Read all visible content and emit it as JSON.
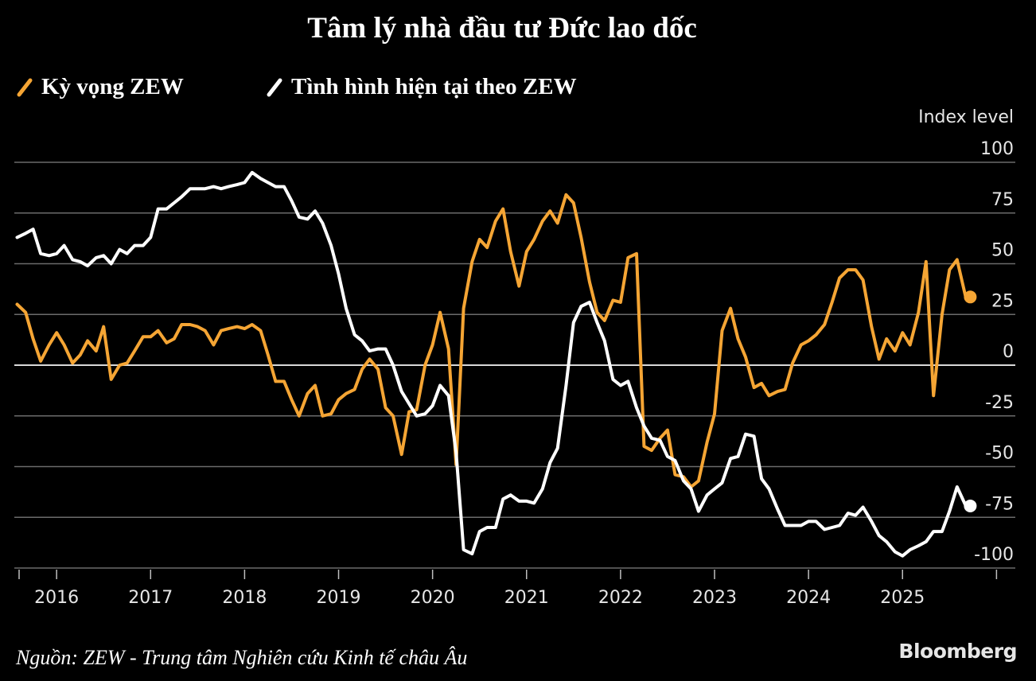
{
  "title": "Tâm lý nhà đầu tư Đức lao dốc",
  "legend": [
    {
      "label": "Kỳ vọng ZEW",
      "color": "#f5a534"
    },
    {
      "label": "Tình hình hiện tại theo ZEW",
      "color": "#ffffff"
    }
  ],
  "source": "Nguồn: ZEW - Trung tâm Nghiên cứu Kinh tế châu Âu",
  "brand": "Bloomberg",
  "chart_data": {
    "type": "line",
    "title": "Tâm lý nhà đầu tư Đức lao dốc",
    "ylabel": "Index level",
    "xlabel": "",
    "ylim": [
      -100,
      100
    ],
    "xlim": [
      2015.55,
      2026.2
    ],
    "y_ticks": [
      {
        "value": 100,
        "label": "100"
      },
      {
        "value": 75,
        "label": "75"
      },
      {
        "value": 50,
        "label": "50"
      },
      {
        "value": 25,
        "label": "25"
      },
      {
        "value": 0,
        "label": "0"
      },
      {
        "value": -25,
        "label": "-25"
      },
      {
        "value": -50,
        "label": "-50"
      },
      {
        "value": -75,
        "label": "-75"
      },
      {
        "value": -100,
        "label": "-100"
      }
    ],
    "x_ticks": [
      {
        "value": 2016,
        "label": "2016"
      },
      {
        "value": 2017,
        "label": "2017"
      },
      {
        "value": 2018,
        "label": "2018"
      },
      {
        "value": 2019,
        "label": "2019"
      },
      {
        "value": 2020,
        "label": "2020"
      },
      {
        "value": 2021,
        "label": "2021"
      },
      {
        "value": 2022,
        "label": "2022"
      },
      {
        "value": 2023,
        "label": "2023"
      },
      {
        "value": 2024,
        "label": "2024"
      },
      {
        "value": 2025,
        "label": "2025"
      }
    ],
    "series": [
      {
        "name": "Kỳ vọng ZEW",
        "color": "#f5a534",
        "end_marker": true,
        "points": [
          [
            2015.58,
            30
          ],
          [
            2015.67,
            26
          ],
          [
            2015.75,
            13
          ],
          [
            2015.83,
            2
          ],
          [
            2015.92,
            10
          ],
          [
            2016.0,
            16
          ],
          [
            2016.08,
            10
          ],
          [
            2016.17,
            1
          ],
          [
            2016.25,
            5
          ],
          [
            2016.33,
            12
          ],
          [
            2016.42,
            7
          ],
          [
            2016.5,
            19
          ],
          [
            2016.58,
            -7
          ],
          [
            2016.67,
            0
          ],
          [
            2016.75,
            1
          ],
          [
            2016.83,
            7
          ],
          [
            2016.92,
            14
          ],
          [
            2017.0,
            14
          ],
          [
            2017.08,
            17
          ],
          [
            2017.17,
            11
          ],
          [
            2017.25,
            13
          ],
          [
            2017.33,
            20
          ],
          [
            2017.42,
            20
          ],
          [
            2017.5,
            19
          ],
          [
            2017.58,
            17
          ],
          [
            2017.67,
            10
          ],
          [
            2017.75,
            17
          ],
          [
            2017.83,
            18
          ],
          [
            2017.92,
            19
          ],
          [
            2018.0,
            18
          ],
          [
            2018.08,
            20
          ],
          [
            2018.17,
            17
          ],
          [
            2018.25,
            5
          ],
          [
            2018.33,
            -8
          ],
          [
            2018.42,
            -8
          ],
          [
            2018.5,
            -17
          ],
          [
            2018.58,
            -25
          ],
          [
            2018.67,
            -14
          ],
          [
            2018.75,
            -10
          ],
          [
            2018.83,
            -25
          ],
          [
            2018.92,
            -24
          ],
          [
            2019.0,
            -17
          ],
          [
            2019.08,
            -14
          ],
          [
            2019.17,
            -12
          ],
          [
            2019.25,
            -2
          ],
          [
            2019.33,
            3
          ],
          [
            2019.42,
            -2
          ],
          [
            2019.5,
            -21
          ],
          [
            2019.58,
            -25
          ],
          [
            2019.67,
            -44
          ],
          [
            2019.75,
            -23
          ],
          [
            2019.83,
            -22
          ],
          [
            2019.92,
            0
          ],
          [
            2020.0,
            10
          ],
          [
            2020.08,
            26
          ],
          [
            2020.17,
            8
          ],
          [
            2020.25,
            -49
          ],
          [
            2020.33,
            28
          ],
          [
            2020.42,
            51
          ],
          [
            2020.5,
            62
          ],
          [
            2020.58,
            58
          ],
          [
            2020.67,
            71
          ],
          [
            2020.75,
            77
          ],
          [
            2020.83,
            56
          ],
          [
            2020.92,
            39
          ],
          [
            2021.0,
            56
          ],
          [
            2021.08,
            62
          ],
          [
            2021.17,
            71
          ],
          [
            2021.25,
            76
          ],
          [
            2021.33,
            70
          ],
          [
            2021.42,
            84
          ],
          [
            2021.5,
            80
          ],
          [
            2021.58,
            63
          ],
          [
            2021.67,
            41
          ],
          [
            2021.75,
            26
          ],
          [
            2021.83,
            22
          ],
          [
            2021.92,
            32
          ],
          [
            2022.0,
            31
          ],
          [
            2022.08,
            53
          ],
          [
            2022.17,
            55
          ],
          [
            2022.25,
            -40
          ],
          [
            2022.33,
            -42
          ],
          [
            2022.42,
            -36
          ],
          [
            2022.5,
            -32
          ],
          [
            2022.58,
            -54
          ],
          [
            2022.67,
            -55
          ],
          [
            2022.75,
            -60
          ],
          [
            2022.83,
            -57
          ],
          [
            2022.92,
            -38
          ],
          [
            2023.0,
            -24
          ],
          [
            2023.08,
            17
          ],
          [
            2023.17,
            28
          ],
          [
            2023.25,
            13
          ],
          [
            2023.33,
            4
          ],
          [
            2023.42,
            -11
          ],
          [
            2023.5,
            -9
          ],
          [
            2023.58,
            -15
          ],
          [
            2023.67,
            -13
          ],
          [
            2023.75,
            -12
          ],
          [
            2023.83,
            1
          ],
          [
            2023.92,
            10
          ],
          [
            2024.0,
            12
          ],
          [
            2024.08,
            15
          ],
          [
            2024.17,
            20
          ],
          [
            2024.25,
            31
          ],
          [
            2024.33,
            43
          ],
          [
            2024.42,
            47
          ],
          [
            2024.5,
            47
          ],
          [
            2024.58,
            42
          ],
          [
            2024.67,
            19
          ],
          [
            2024.75,
            3
          ],
          [
            2024.83,
            13
          ],
          [
            2024.92,
            7
          ],
          [
            2025.0,
            16
          ],
          [
            2025.08,
            10
          ],
          [
            2025.17,
            26
          ],
          [
            2025.25,
            51
          ],
          [
            2025.33,
            -15
          ],
          [
            2025.42,
            25
          ],
          [
            2025.5,
            47
          ],
          [
            2025.58,
            52
          ],
          [
            2025.67,
            34
          ]
        ]
      },
      {
        "name": "Tình hình hiện tại theo ZEW",
        "color": "#ffffff",
        "end_marker": true,
        "points": [
          [
            2015.58,
            63
          ],
          [
            2015.67,
            65
          ],
          [
            2015.75,
            67
          ],
          [
            2015.83,
            55
          ],
          [
            2015.92,
            54
          ],
          [
            2016.0,
            55
          ],
          [
            2016.08,
            59
          ],
          [
            2016.17,
            52
          ],
          [
            2016.25,
            51
          ],
          [
            2016.33,
            49
          ],
          [
            2016.42,
            53
          ],
          [
            2016.5,
            54
          ],
          [
            2016.58,
            50
          ],
          [
            2016.67,
            57
          ],
          [
            2016.75,
            55
          ],
          [
            2016.83,
            59
          ],
          [
            2016.92,
            59
          ],
          [
            2017.0,
            63
          ],
          [
            2017.08,
            77
          ],
          [
            2017.17,
            77
          ],
          [
            2017.25,
            80
          ],
          [
            2017.33,
            83
          ],
          [
            2017.42,
            87
          ],
          [
            2017.5,
            87
          ],
          [
            2017.58,
            87
          ],
          [
            2017.67,
            88
          ],
          [
            2017.75,
            87
          ],
          [
            2017.83,
            88
          ],
          [
            2017.92,
            89
          ],
          [
            2018.0,
            90
          ],
          [
            2018.08,
            95
          ],
          [
            2018.17,
            92
          ],
          [
            2018.25,
            90
          ],
          [
            2018.33,
            88
          ],
          [
            2018.42,
            88
          ],
          [
            2018.5,
            81
          ],
          [
            2018.58,
            73
          ],
          [
            2018.67,
            72
          ],
          [
            2018.75,
            76
          ],
          [
            2018.83,
            70
          ],
          [
            2018.92,
            59
          ],
          [
            2019.0,
            45
          ],
          [
            2019.08,
            28
          ],
          [
            2019.17,
            15
          ],
          [
            2019.25,
            12
          ],
          [
            2019.33,
            7
          ],
          [
            2019.42,
            8
          ],
          [
            2019.5,
            8
          ],
          [
            2019.58,
            0
          ],
          [
            2019.67,
            -13
          ],
          [
            2019.75,
            -19
          ],
          [
            2019.83,
            -25
          ],
          [
            2019.92,
            -24
          ],
          [
            2020.0,
            -20
          ],
          [
            2020.08,
            -10
          ],
          [
            2020.17,
            -15
          ],
          [
            2020.25,
            -43
          ],
          [
            2020.33,
            -91
          ],
          [
            2020.42,
            -93
          ],
          [
            2020.5,
            -82
          ],
          [
            2020.58,
            -80
          ],
          [
            2020.67,
            -80
          ],
          [
            2020.75,
            -66
          ],
          [
            2020.83,
            -64
          ],
          [
            2020.92,
            -67
          ],
          [
            2021.0,
            -67
          ],
          [
            2021.08,
            -68
          ],
          [
            2021.17,
            -61
          ],
          [
            2021.25,
            -48
          ],
          [
            2021.33,
            -41
          ],
          [
            2021.42,
            -10
          ],
          [
            2021.5,
            21
          ],
          [
            2021.58,
            29
          ],
          [
            2021.67,
            31
          ],
          [
            2021.75,
            21
          ],
          [
            2021.83,
            12
          ],
          [
            2021.92,
            -7
          ],
          [
            2022.0,
            -10
          ],
          [
            2022.08,
            -8
          ],
          [
            2022.17,
            -21
          ],
          [
            2022.25,
            -30
          ],
          [
            2022.33,
            -36
          ],
          [
            2022.42,
            -37
          ],
          [
            2022.5,
            -45
          ],
          [
            2022.58,
            -47
          ],
          [
            2022.67,
            -57
          ],
          [
            2022.75,
            -61
          ],
          [
            2022.83,
            -72
          ],
          [
            2022.92,
            -64
          ],
          [
            2023.0,
            -61
          ],
          [
            2023.08,
            -58
          ],
          [
            2023.17,
            -46
          ],
          [
            2023.25,
            -45
          ],
          [
            2023.33,
            -34
          ],
          [
            2023.42,
            -35
          ],
          [
            2023.5,
            -56
          ],
          [
            2023.58,
            -61
          ],
          [
            2023.67,
            -71
          ],
          [
            2023.75,
            -79
          ],
          [
            2023.83,
            -79
          ],
          [
            2023.92,
            -79
          ],
          [
            2024.0,
            -77
          ],
          [
            2024.08,
            -77
          ],
          [
            2024.17,
            -81
          ],
          [
            2024.25,
            -80
          ],
          [
            2024.33,
            -79
          ],
          [
            2024.42,
            -73
          ],
          [
            2024.5,
            -74
          ],
          [
            2024.58,
            -70
          ],
          [
            2024.67,
            -77
          ],
          [
            2024.75,
            -84
          ],
          [
            2024.83,
            -87
          ],
          [
            2024.92,
            -92
          ],
          [
            2025.0,
            -94
          ],
          [
            2025.08,
            -91
          ],
          [
            2025.17,
            -89
          ],
          [
            2025.25,
            -87
          ],
          [
            2025.33,
            -82
          ],
          [
            2025.42,
            -82
          ],
          [
            2025.5,
            -72
          ],
          [
            2025.58,
            -60
          ],
          [
            2025.67,
            -69
          ]
        ]
      }
    ]
  }
}
